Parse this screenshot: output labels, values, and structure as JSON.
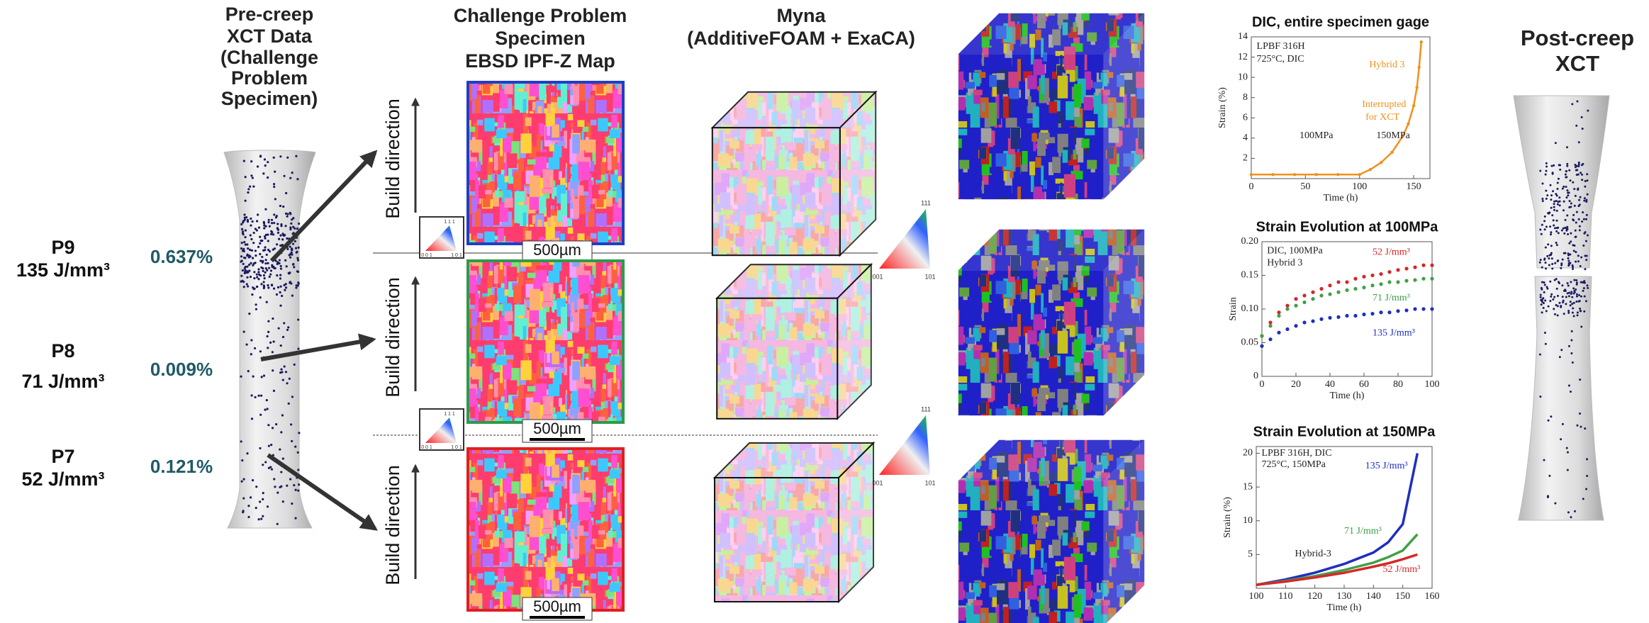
{
  "pre_creep": {
    "title": [
      "Pre-creep",
      "XCT Data",
      "(Challenge",
      "Problem",
      "Specimen)"
    ],
    "rows": [
      {
        "id": "P9",
        "energy": "135 J/mm³",
        "porosity": "0.637%"
      },
      {
        "id": "P8",
        "energy": "71 J/mm³",
        "porosity": "0.009%"
      },
      {
        "id": "P7",
        "energy": "52 J/mm³",
        "porosity": "0.121%"
      }
    ]
  },
  "ebsd": {
    "title": [
      "Challenge Problem",
      "Specimen",
      "EBSD IPF-Z Map"
    ],
    "maps": [
      {
        "build_direction": "Build direction",
        "scale_bar": "500µm"
      },
      {
        "build_direction": "Build direction",
        "scale_bar": "500µm"
      },
      {
        "build_direction": "Build direction",
        "scale_bar": "500µm"
      }
    ],
    "inset_ipf": [
      "1 1 1",
      "0 0 1",
      "1 0 1"
    ]
  },
  "myna": {
    "title": [
      "Myna",
      "(AdditiveFOAM + ExaCA)"
    ],
    "ipf": [
      "111",
      "001",
      "101"
    ]
  },
  "post_creep": {
    "title": [
      "Post-creep",
      "XCT"
    ]
  },
  "chart_data": [
    {
      "type": "line",
      "title": "DIC, entire specimen gage",
      "x_label": "Time (h)",
      "y_label": "Strain (%)",
      "x": [
        0,
        20,
        40,
        60,
        80,
        100,
        110,
        120,
        130,
        140,
        145,
        150,
        153,
        155,
        157
      ],
      "series": [
        {
          "name": "Hybrid 3",
          "color": "#f0901e",
          "values": [
            0.4,
            0.4,
            0.4,
            0.4,
            0.4,
            0.4,
            0.9,
            1.6,
            2.6,
            4.2,
            5.4,
            7.2,
            9,
            11,
            13.5
          ]
        }
      ],
      "annotations": [
        "LPBF 316H",
        "725°C, DIC",
        "Interrupted",
        "for XCT",
        "100MPa",
        "150MPa"
      ],
      "xlim": [
        0,
        165
      ],
      "xticks": [
        0,
        50,
        100,
        150
      ],
      "ylim": [
        0,
        14
      ],
      "yticks": [
        2,
        4,
        6,
        8,
        10,
        12,
        14
      ]
    },
    {
      "type": "scatter",
      "title": "Strain Evolution at 100MPa",
      "x_label": "Time (h)",
      "y_label": "Strain",
      "x": [
        0,
        5,
        10,
        15,
        20,
        25,
        30,
        35,
        40,
        45,
        50,
        55,
        60,
        65,
        70,
        75,
        80,
        85,
        90,
        95,
        100
      ],
      "series": [
        {
          "name": "52 J/mm³",
          "color": "#d62728",
          "values": [
            0.06,
            0.08,
            0.095,
            0.105,
            0.115,
            0.12,
            0.125,
            0.13,
            0.135,
            0.14,
            0.14,
            0.145,
            0.148,
            0.15,
            0.152,
            0.155,
            0.158,
            0.16,
            0.162,
            0.165,
            0.165
          ]
        },
        {
          "name": "71 J/mm³",
          "color": "#3fa047",
          "values": [
            0.06,
            0.075,
            0.09,
            0.1,
            0.105,
            0.11,
            0.115,
            0.12,
            0.122,
            0.125,
            0.128,
            0.13,
            0.132,
            0.135,
            0.137,
            0.14,
            0.14,
            0.142,
            0.143,
            0.145,
            0.145
          ]
        },
        {
          "name": "135 J/mm³",
          "color": "#1f2fbf",
          "values": [
            0.045,
            0.055,
            0.065,
            0.07,
            0.075,
            0.08,
            0.082,
            0.085,
            0.087,
            0.088,
            0.09,
            0.09,
            0.092,
            0.093,
            0.095,
            0.095,
            0.097,
            0.098,
            0.1,
            0.1,
            0.1
          ]
        }
      ],
      "annotations": [
        "DIC, 100MPa",
        "Hybrid 3"
      ],
      "xlim": [
        0,
        100
      ],
      "xticks": [
        0,
        20,
        40,
        60,
        80,
        100
      ],
      "ylim": [
        0,
        0.2
      ],
      "yticks": [
        0,
        0.05,
        {
          "value": 0.1,
          "label": "0.10"
        },
        0.15,
        {
          "value": 0.2,
          "label": "0.20"
        }
      ]
    },
    {
      "type": "line",
      "title": "Strain Evolution at 150MPa",
      "x_label": "Time (h)",
      "y_label": "Strain (%)",
      "x": [
        100,
        110,
        120,
        130,
        140,
        145,
        150,
        155
      ],
      "series": [
        {
          "name": "135 J/mm³",
          "color": "#1f2fbf",
          "values": [
            0.5,
            1.3,
            2.3,
            3.6,
            5.3,
            6.8,
            9.5,
            20
          ]
        },
        {
          "name": "71 J/mm³",
          "color": "#3fa047",
          "values": [
            0.5,
            1.1,
            1.8,
            2.7,
            3.8,
            4.6,
            5.6,
            8
          ]
        },
        {
          "name": "52 J/mm³",
          "color": "#d62728",
          "values": [
            0.5,
            1.0,
            1.6,
            2.3,
            3.2,
            3.7,
            4.3,
            5
          ]
        }
      ],
      "annotations": [
        "LPBF 316H, DIC",
        "725°C, 150MPa",
        "Hybrid-3"
      ],
      "xlim": [
        100,
        160
      ],
      "xticks": [
        100,
        110,
        120,
        130,
        140,
        150,
        160
      ],
      "ylim": [
        0,
        21
      ],
      "yticks": [
        5,
        10,
        15,
        20
      ]
    }
  ]
}
